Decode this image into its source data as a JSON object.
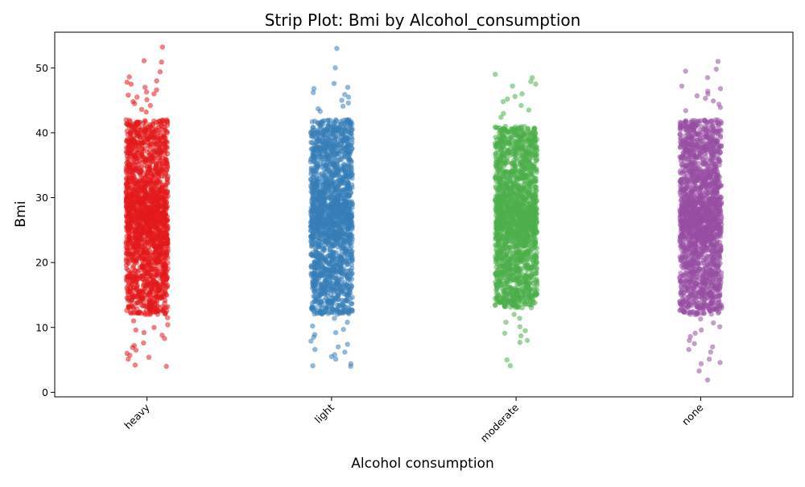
{
  "chart_data": {
    "type": "scatter",
    "subtype": "strip",
    "title": "Strip Plot: Bmi by Alcohol_consumption",
    "xlabel": "Alcohol consumption",
    "ylabel": "Bmi",
    "categories": [
      "heavy",
      "light",
      "moderate",
      "none"
    ],
    "ylim": [
      -0.7,
      55.5
    ],
    "yticks": [
      0,
      10,
      20,
      30,
      40,
      50
    ],
    "grid": false,
    "legend": "none",
    "marker_opacity": 0.55,
    "series": [
      {
        "category": "heavy",
        "color": "#e41a1c",
        "dense_range": [
          12,
          42
        ],
        "outliers": [
          53.2,
          51.1,
          50.9,
          49.4,
          48.6,
          48.0,
          47.8,
          47.5,
          47.0,
          46.6,
          46.3,
          46.0,
          45.8,
          45.5,
          45.1,
          44.8,
          44.5,
          44.2,
          43.6,
          43.2,
          11.5,
          11.0,
          10.4,
          10.0,
          9.6,
          9.2,
          8.8,
          8.3,
          7.6,
          7.2,
          6.9,
          6.5,
          6.0,
          5.7,
          5.4,
          5.1,
          4.2,
          4.0
        ]
      },
      {
        "category": "light",
        "color": "#377eb8",
        "dense_range": [
          12,
          42
        ],
        "outliers": [
          53.0,
          50.0,
          47.6,
          47.0,
          46.8,
          46.2,
          45.9,
          45.5,
          45.0,
          44.6,
          44.1,
          43.7,
          43.3,
          11.4,
          10.8,
          10.2,
          9.7,
          9.2,
          8.9,
          8.5,
          7.9,
          7.4,
          7.0,
          6.6,
          6.2,
          5.8,
          5.5,
          5.1,
          4.4,
          4.1,
          4.0
        ]
      },
      {
        "category": "moderate",
        "color": "#4daf4a",
        "dense_range": [
          13,
          41
        ],
        "outliers": [
          49.0,
          48.5,
          47.9,
          47.5,
          47.2,
          46.0,
          45.6,
          45.2,
          44.8,
          44.2,
          43.5,
          43.0,
          42.4,
          12.0,
          11.4,
          10.8,
          10.1,
          9.5,
          9.1,
          8.7,
          8.0,
          7.7,
          5.0,
          4.1
        ]
      },
      {
        "category": "none",
        "color": "#984ea3",
        "dense_range": [
          12,
          42
        ],
        "outliers": [
          51.0,
          49.8,
          49.5,
          48.5,
          47.2,
          46.8,
          46.4,
          46.0,
          45.7,
          45.3,
          44.9,
          44.4,
          43.9,
          43.4,
          11.3,
          10.7,
          10.1,
          9.6,
          9.1,
          8.6,
          8.0,
          7.5,
          7.0,
          6.6,
          6.2,
          5.1,
          4.6,
          4.4,
          3.3,
          1.9
        ]
      }
    ]
  }
}
